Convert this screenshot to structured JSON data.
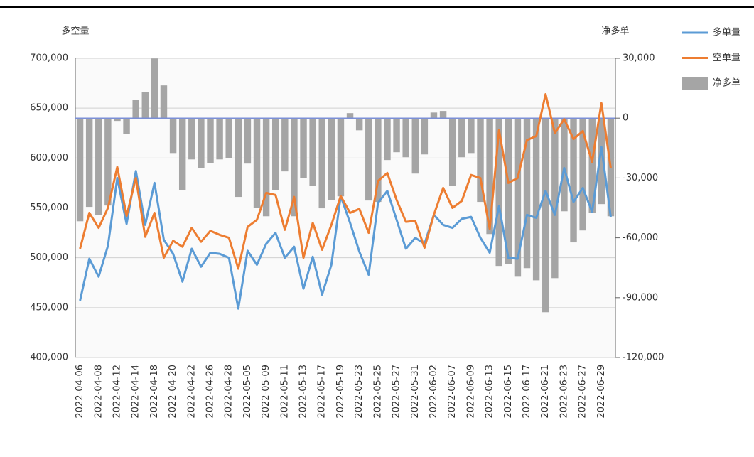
{
  "chart_data": {
    "type": "combo",
    "y_label": "多空量",
    "y2_label": "净多单",
    "categories": [
      "2022-04-06",
      null,
      "2022-04-08",
      null,
      "2022-04-12",
      null,
      "2022-04-14",
      null,
      "2022-04-18",
      null,
      "2022-04-20",
      null,
      "2022-04-22",
      null,
      "2022-04-26",
      null,
      "2022-04-28",
      null,
      "2022-05-05",
      null,
      "2022-05-09",
      null,
      "2022-05-11",
      null,
      "2022-05-13",
      null,
      "2022-05-17",
      null,
      "2022-05-19",
      null,
      "2022-05-23",
      null,
      "2022-05-25",
      null,
      "2022-05-27",
      null,
      "2022-05-31",
      null,
      "2022-06-02",
      null,
      "2022-06-07",
      null,
      "2022-06-09",
      null,
      "2022-06-13",
      null,
      "2022-06-15",
      null,
      "2022-06-17",
      null,
      "2022-06-21",
      null,
      "2022-06-23",
      null,
      "2022-06-27",
      null,
      "2022-06-29",
      null
    ],
    "series": [
      {
        "name": "多单量",
        "type": "line",
        "color": "#5b9bd5",
        "axis": "y",
        "values": [
          457000,
          499000,
          481000,
          512000,
          580000,
          534000,
          587000,
          533000,
          575000,
          518000,
          504000,
          476000,
          509000,
          491000,
          505000,
          504000,
          500000,
          449000,
          507000,
          493000,
          514000,
          525000,
          500000,
          511000,
          469000,
          501000,
          463000,
          493000,
          562000,
          535000,
          506000,
          483000,
          555000,
          567000,
          538000,
          509000,
          520000,
          514000,
          543000,
          533000,
          530000,
          539000,
          541000,
          520000,
          505000,
          552000,
          500000,
          499000,
          543000,
          540000,
          567000,
          543000,
          590000,
          556000,
          570000,
          546000,
          611000,
          541000
        ]
      },
      {
        "name": "空单量",
        "type": "line",
        "color": "#ed7d31",
        "axis": "y",
        "values": [
          509000,
          545000,
          530000,
          550000,
          591000,
          542000,
          580000,
          521000,
          545000,
          500000,
          517000,
          511000,
          530000,
          516000,
          527000,
          523000,
          520000,
          489000,
          531000,
          538000,
          565000,
          563000,
          528000,
          561000,
          500000,
          535000,
          508000,
          533000,
          562000,
          545000,
          549000,
          525000,
          577000,
          585000,
          558000,
          536000,
          537000,
          510000,
          543000,
          570000,
          550000,
          557000,
          583000,
          580000,
          529000,
          628000,
          575000,
          580000,
          618000,
          622000,
          664000,
          625000,
          639000,
          619000,
          627000,
          596000,
          655000,
          590000
        ]
      },
      {
        "name": "净多单",
        "type": "bar",
        "color": "#a5a5a5",
        "axis": "y2",
        "values": [
          -51700,
          -44500,
          -48400,
          -43800,
          -1400,
          -7800,
          9300,
          13200,
          29900,
          16400,
          -17500,
          -36000,
          -20700,
          -24900,
          -22400,
          -20700,
          -20000,
          -39500,
          -22800,
          -44900,
          -49200,
          -36000,
          -26700,
          -49200,
          -29900,
          -33800,
          -45200,
          -41000,
          -39200,
          2500,
          -6100,
          -41300,
          -42000,
          -21000,
          -17100,
          -19600,
          -27800,
          -18200,
          2800,
          3600,
          -33800,
          -19600,
          -17500,
          -42000,
          -58100,
          -74100,
          -73000,
          -79500,
          -75200,
          -81300,
          -97300,
          -80200,
          -46700,
          -62300,
          -56300,
          -47400,
          -43100,
          -49200
        ]
      }
    ],
    "ylim": [
      400000,
      700000
    ],
    "yticks": [
      {
        "value": 400000,
        "label": "400,000"
      },
      {
        "value": 450000,
        "label": "450,000"
      },
      {
        "value": 500000,
        "label": "500,000"
      },
      {
        "value": 550000,
        "label": "550,000"
      },
      {
        "value": 600000,
        "label": "600,000"
      },
      {
        "value": 650000,
        "label": "650,000"
      },
      {
        "value": 700000,
        "label": "700,000"
      }
    ],
    "y2lim": [
      -120000,
      30000
    ],
    "y2ticks": [
      {
        "value": -120000,
        "label": "-120,000"
      },
      {
        "value": -90000,
        "label": "-90,000"
      },
      {
        "value": -60000,
        "label": "-60,000"
      },
      {
        "value": -30000,
        "label": "-30,000"
      },
      0,
      {
        "value": 30000,
        "label": "30,000"
      }
    ],
    "grid": true,
    "legend": "right"
  }
}
